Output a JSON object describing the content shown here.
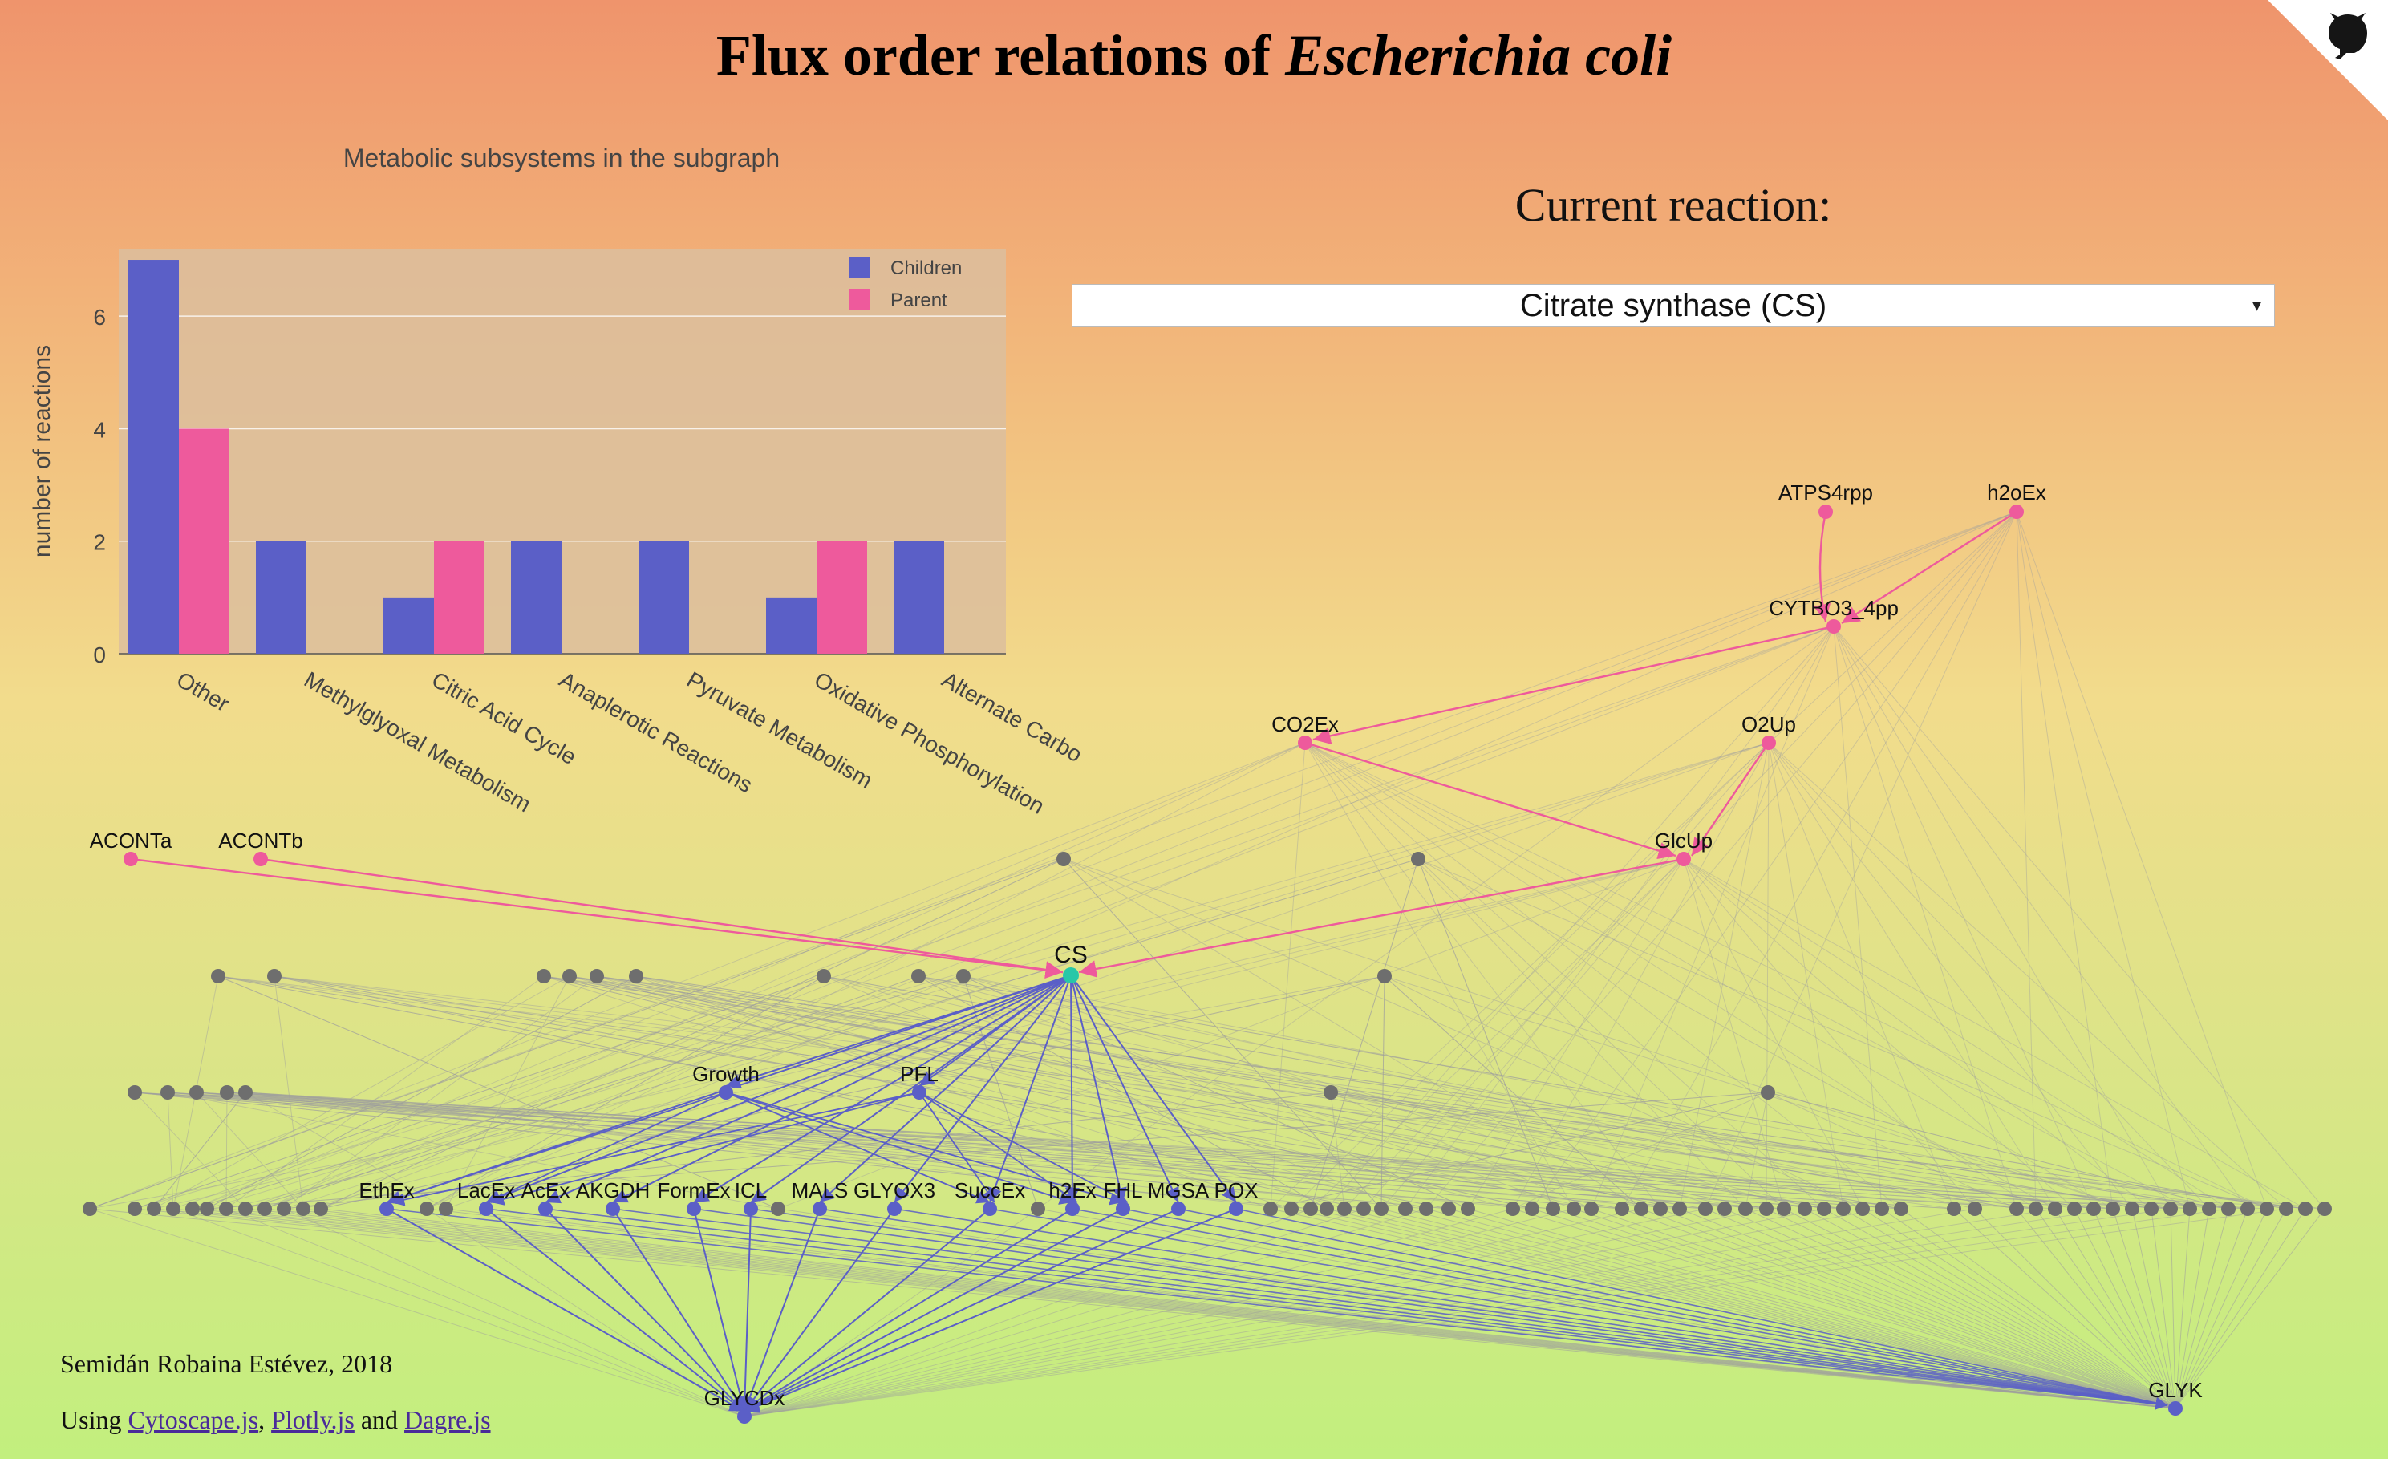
{
  "page": {
    "title_prefix": "Flux order relations of ",
    "title_italic": "Escherichia coli"
  },
  "corner": {
    "icon": "github-octocat-icon",
    "color": "#ffffff"
  },
  "chart_data": {
    "type": "bar",
    "title": "Metabolic subsystems in the subgraph",
    "ylabel": "number of reactions",
    "xlabel": "",
    "categories": [
      "Other",
      "Methylglyoxal Metabolism",
      "Citric Acid Cycle",
      "Anaplerotic Reactions",
      "Pyruvate Metabolism",
      "Oxidative Phosphorylation",
      "Alternate Carbo"
    ],
    "series": [
      {
        "name": "Children",
        "values": [
          7,
          2,
          1,
          2,
          2,
          1,
          2
        ],
        "color": "#5b5fc7"
      },
      {
        "name": "Parent",
        "values": [
          4,
          0,
          2,
          0,
          0,
          2,
          0
        ],
        "color": "#ee5a9c"
      }
    ],
    "ylim": [
      0,
      7.2
    ],
    "yticks": [
      0,
      2,
      4,
      6
    ],
    "grid": true,
    "legend_position": "top-right"
  },
  "selector": {
    "label": "Current reaction:",
    "value": "Citrate synthase (CS)",
    "arrow": "▾"
  },
  "graph": {
    "colors": {
      "parent": "#ee5a9c",
      "child": "#5b5fc7",
      "current": "#27c7a8",
      "other": "#6e6e6e",
      "edge": "#9e9e9e"
    },
    "current": "CS",
    "parents": [
      "ATPS4rpp",
      "h2oEx",
      "CYTBO3_4pp",
      "CO2Ex",
      "O2Up",
      "ACONTa",
      "ACONTb",
      "GlcUp"
    ],
    "children": [
      "Growth",
      "PFL",
      "EthEx",
      "LacEx",
      "AcEx",
      "AKGDH",
      "FormEx",
      "ICL",
      "MALS",
      "GLYOX3",
      "SuccEx",
      "h2Ex",
      "FHL",
      "MGSA",
      "POX",
      "GLYCDx",
      "GLYK"
    ]
  },
  "footer": {
    "author": "Semidán Robaina Estévez, 2018",
    "using": "Using",
    "link1": "Cytoscape.js",
    "link2": "Plotly.js",
    "and": "and",
    "link3": "Dagre.js"
  }
}
